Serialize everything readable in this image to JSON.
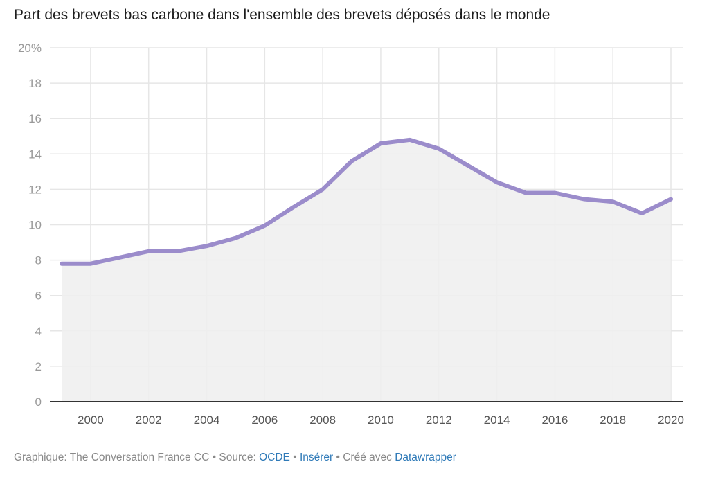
{
  "chart_data": {
    "type": "area",
    "title": "Part des brevets bas carbone dans l'ensemble des brevets déposés dans le monde",
    "xlabel": "",
    "ylabel": "",
    "x": [
      1999,
      2000,
      2001,
      2002,
      2003,
      2004,
      2005,
      2006,
      2007,
      2008,
      2009,
      2010,
      2011,
      2012,
      2013,
      2014,
      2015,
      2016,
      2017,
      2018,
      2019,
      2020
    ],
    "series": [
      {
        "name": "Part des brevets bas carbone",
        "values": [
          7.8,
          7.8,
          8.15,
          8.5,
          8.5,
          8.8,
          9.25,
          9.95,
          11.0,
          12.0,
          13.6,
          14.6,
          14.8,
          14.3,
          13.35,
          12.4,
          11.8,
          11.8,
          11.45,
          11.3,
          10.65,
          11.45
        ]
      }
    ],
    "ylim": [
      0,
      20
    ],
    "xlim": [
      1999,
      2020
    ],
    "y_ticks": [
      "0",
      "2",
      "4",
      "6",
      "8",
      "10",
      "12",
      "14",
      "16",
      "18",
      "20%"
    ],
    "y_tick_values": [
      0,
      2,
      4,
      6,
      8,
      10,
      12,
      14,
      16,
      18,
      20
    ],
    "x_ticks": [
      "2000",
      "2002",
      "2004",
      "2006",
      "2008",
      "2010",
      "2012",
      "2014",
      "2016",
      "2018",
      "2020"
    ],
    "x_tick_values": [
      2000,
      2002,
      2004,
      2006,
      2008,
      2010,
      2012,
      2014,
      2016,
      2018,
      2020
    ],
    "grid": true,
    "colors": {
      "line": "#9b8ccb",
      "area": "#efefef",
      "grid": "#e6e6e6",
      "axis": "#333333"
    }
  },
  "footer": {
    "credit": "Graphique: The Conversation France CC",
    "sep1": " • ",
    "source_label": "Source: ",
    "source_link": "OCDE",
    "sep2": " • ",
    "embed_link": "Insérer",
    "sep3": " • ",
    "created_label": "Créé avec ",
    "tool_link": "Datawrapper"
  }
}
